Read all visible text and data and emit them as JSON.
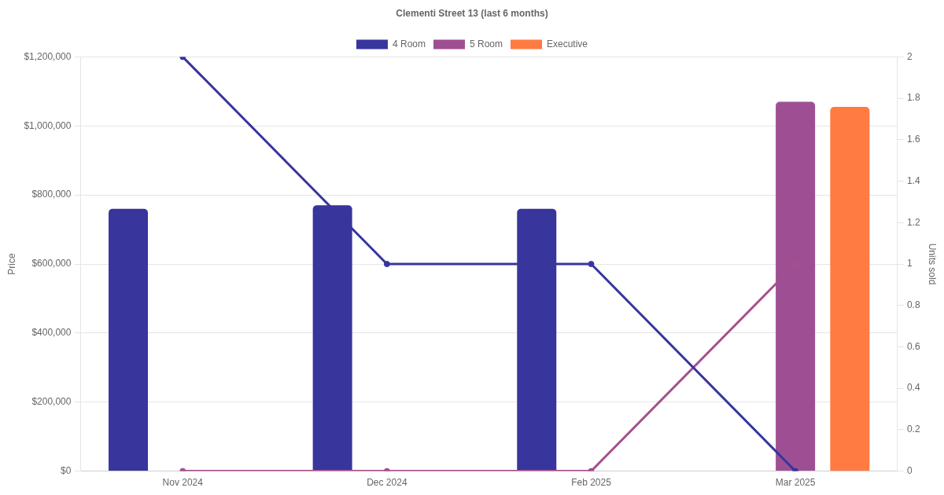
{
  "chart_data": {
    "type": "bar",
    "title": "Clementi Street 13 (last 6 months)",
    "categories": [
      "Nov 2024",
      "Dec 2024",
      "Feb 2025",
      "Mar 2025"
    ],
    "ylabel": "Price",
    "y2label": "Units sold",
    "series": [
      {
        "name": "4 Room",
        "color": "#38359d",
        "values": [
          760000,
          770000,
          760000,
          null
        ]
      },
      {
        "name": "5 Room",
        "color": "#9e4f93",
        "values": [
          null,
          null,
          null,
          1070000
        ]
      },
      {
        "name": "Executive",
        "color": "#ff7b42",
        "values": [
          null,
          null,
          null,
          1055000
        ]
      },
      {
        "type": "line",
        "axis": "y2",
        "color": "#38359d",
        "values": [
          2,
          1,
          1,
          0
        ]
      },
      {
        "type": "line",
        "axis": "y2",
        "color": "#a4508e",
        "values": [
          0,
          0,
          0,
          1
        ]
      }
    ],
    "ylim": [
      0,
      1200000
    ],
    "yticks": [
      {
        "value": 0,
        "label": "$0"
      },
      {
        "value": 200000,
        "label": "$200,000"
      },
      {
        "value": 400000,
        "label": "$400,000"
      },
      {
        "value": 600000,
        "label": "$600,000"
      },
      {
        "value": 800000,
        "label": "$800,000"
      },
      {
        "value": 1000000,
        "label": "$1,000,000"
      },
      {
        "value": 1200000,
        "label": "$1,200,000"
      }
    ],
    "y2lim": [
      0,
      2
    ],
    "y2ticks": [
      0,
      0.2,
      0.4,
      0.6,
      0.8,
      1,
      1.2,
      1.4,
      1.6,
      1.8,
      2
    ],
    "grid": "y",
    "legend": "top",
    "marker": "circle"
  }
}
